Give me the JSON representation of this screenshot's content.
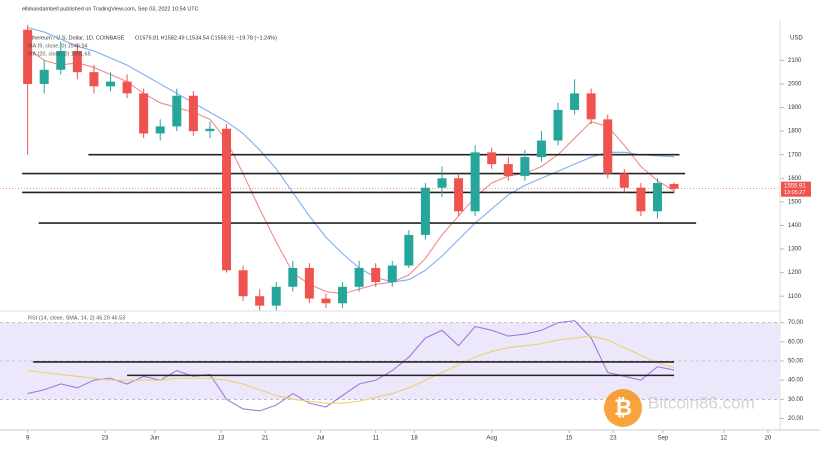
{
  "header": {
    "publisher": "ellimandambell published on TradingView.com, Sep 03, 2022 10:54 UTC",
    "symbol": "Ethereum / U.S. Dollar, 1D, COINBASE",
    "ohlc": "O1575.81 H1582.49 L1534.54 C1555.91 −19.78 (−1.24%)",
    "currency": "USD",
    "last_price": "1555.91",
    "countdown": "13:05:27",
    "watermark_icon": "₿",
    "watermark": "Bitcoin86.com"
  },
  "chart_data": [
    {
      "type": "candlestick",
      "x": [
        0,
        3,
        6,
        9,
        12,
        15,
        18,
        21,
        24,
        27,
        30,
        33,
        36,
        39,
        42,
        45,
        48,
        51,
        54,
        57,
        60,
        63,
        66,
        69,
        72,
        75,
        78,
        81,
        84,
        87,
        90,
        93,
        96,
        99,
        102,
        105,
        108,
        111,
        114,
        117
      ],
      "open": [
        2230,
        2000,
        2060,
        2140,
        2050,
        1990,
        2010,
        1960,
        1790,
        1820,
        1950,
        1800,
        1810,
        1210,
        1100,
        1060,
        1140,
        1220,
        1090,
        1070,
        1140,
        1220,
        1160,
        1230,
        1360,
        1560,
        1600,
        1460,
        1710,
        1660,
        1610,
        1690,
        1760,
        1890,
        1960,
        1850,
        1620,
        1560,
        1460,
        1575.81
      ],
      "high": [
        2250,
        2100,
        2180,
        2170,
        2080,
        2050,
        2040,
        1980,
        1850,
        1980,
        1970,
        1840,
        1830,
        1230,
        1130,
        1160,
        1250,
        1240,
        1110,
        1160,
        1250,
        1240,
        1250,
        1380,
        1580,
        1650,
        1620,
        1740,
        1730,
        1690,
        1720,
        1800,
        1920,
        2020,
        1980,
        1870,
        1640,
        1580,
        1600,
        1582.49
      ],
      "low": [
        1700,
        1960,
        2040,
        2020,
        1960,
        1970,
        1940,
        1770,
        1760,
        1800,
        1780,
        1770,
        1200,
        1080,
        1040,
        1040,
        1120,
        1070,
        1050,
        1050,
        1120,
        1140,
        1140,
        1220,
        1340,
        1520,
        1440,
        1440,
        1640,
        1590,
        1590,
        1670,
        1740,
        1870,
        1830,
        1600,
        1540,
        1440,
        1430,
        1534.54
      ],
      "close": [
        2000,
        2060,
        2140,
        2050,
        1990,
        2010,
        1960,
        1790,
        1820,
        1950,
        1800,
        1810,
        1210,
        1100,
        1060,
        1140,
        1220,
        1090,
        1070,
        1140,
        1220,
        1160,
        1230,
        1360,
        1560,
        1600,
        1460,
        1710,
        1660,
        1610,
        1690,
        1760,
        1890,
        1960,
        1850,
        1620,
        1560,
        1460,
        1580,
        1555.91
      ],
      "up_color": "#26a69a",
      "down_color": "#ef5350",
      "series": [
        {
          "name": "MA (9, close, 0) 1546.94",
          "color": "#f28b8b",
          "values": [
            2150,
            2100,
            2080,
            2090,
            2070,
            2040,
            2010,
            1960,
            1920,
            1900,
            1880,
            1850,
            1760,
            1620,
            1470,
            1330,
            1200,
            1150,
            1120,
            1110,
            1130,
            1150,
            1160,
            1190,
            1260,
            1360,
            1440,
            1520,
            1580,
            1610,
            1620,
            1650,
            1700,
            1770,
            1840,
            1820,
            1740,
            1650,
            1590,
            1546.94
          ]
        },
        {
          "name": "MA (20, close, 0) 1691.65",
          "color": "#7fb0f0",
          "values": [
            2240,
            2220,
            2190,
            2160,
            2140,
            2110,
            2080,
            2040,
            2000,
            1960,
            1920,
            1880,
            1840,
            1790,
            1720,
            1640,
            1540,
            1440,
            1350,
            1280,
            1220,
            1180,
            1160,
            1170,
            1210,
            1270,
            1340,
            1410,
            1470,
            1530,
            1570,
            1600,
            1630,
            1660,
            1690,
            1710,
            1710,
            1700,
            1695,
            1691.65
          ]
        }
      ],
      "hlines": [
        {
          "value": 1700,
          "x": [
            11,
            118
          ]
        },
        {
          "value": 1620,
          "x": [
            -1,
            119
          ]
        },
        {
          "value": 1540,
          "x": [
            -1,
            117
          ]
        },
        {
          "value": 1410,
          "x": [
            2,
            121
          ]
        }
      ],
      "xlim": [
        -5,
        136
      ],
      "ylim": [
        1050,
        2250
      ],
      "yticks": [
        1100,
        1200,
        1300,
        1400,
        1500,
        1600,
        1700,
        1800,
        1900,
        2000,
        2100
      ],
      "xticks": [
        {
          "value": 0,
          "label": "9"
        },
        {
          "value": 14,
          "label": "23"
        },
        {
          "value": 23,
          "label": "Jun"
        },
        {
          "value": 35,
          "label": "13"
        },
        {
          "value": 43,
          "label": "21"
        },
        {
          "value": 53,
          "label": "Jul"
        },
        {
          "value": 63,
          "label": "11"
        },
        {
          "value": 70,
          "label": "18"
        },
        {
          "value": 84,
          "label": "Aug"
        },
        {
          "value": 98,
          "label": "15"
        },
        {
          "value": 106,
          "label": "23"
        },
        {
          "value": 115,
          "label": "Sep"
        },
        {
          "value": 126,
          "label": "12"
        },
        {
          "value": 134,
          "label": "20"
        }
      ]
    },
    {
      "type": "line",
      "title": "RSI (14, close, SMA, 14, 2) 45.29 46.53",
      "x": [
        0,
        3,
        6,
        9,
        12,
        15,
        18,
        21,
        24,
        27,
        30,
        33,
        36,
        39,
        42,
        45,
        48,
        51,
        54,
        57,
        60,
        63,
        66,
        69,
        72,
        75,
        78,
        81,
        84,
        87,
        90,
        93,
        96,
        99,
        102,
        105,
        108,
        111,
        114,
        117
      ],
      "series": [
        {
          "name": "RSI",
          "color": "#9c7ee0",
          "values": [
            33,
            35,
            38,
            36,
            40,
            41,
            38,
            42,
            40,
            45,
            42,
            43,
            30,
            25,
            24,
            27,
            33,
            28,
            26,
            32,
            38,
            40,
            45,
            52,
            62,
            66,
            58,
            68,
            66,
            63,
            64,
            66,
            70,
            71,
            62,
            44,
            42,
            40,
            47,
            45.29
          ]
        },
        {
          "name": "RSI MA",
          "color": "#e8d36a",
          "values": [
            45,
            44,
            43,
            42,
            41,
            40,
            40,
            40,
            40,
            41,
            41,
            41,
            40,
            38,
            35,
            32,
            30,
            29,
            28,
            28,
            29,
            31,
            33,
            36,
            40,
            44,
            48,
            52,
            55,
            57,
            58,
            59,
            61,
            62,
            63,
            61,
            57,
            53,
            49,
            46.53
          ]
        }
      ],
      "levels": [
        70,
        50,
        30
      ],
      "band": [
        30,
        70
      ],
      "hlines": [
        {
          "value": 49.5,
          "x": [
            1,
            117
          ]
        },
        {
          "value": 42.5,
          "x": [
            18,
            117
          ]
        }
      ],
      "xlim": [
        -5,
        136
      ],
      "ylim": [
        14,
        74
      ],
      "yticks": [
        {
          "value": 70,
          "label": "70.00"
        },
        {
          "value": 60,
          "label": "60.00"
        },
        {
          "value": 50,
          "label": "50.00"
        },
        {
          "value": 40,
          "label": "40.00"
        },
        {
          "value": 30,
          "label": "30.00"
        },
        {
          "value": 20,
          "label": "20.00"
        }
      ]
    }
  ]
}
